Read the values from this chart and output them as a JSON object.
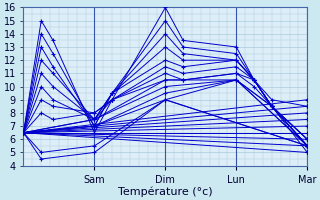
{
  "xlabel": "Température (°c)",
  "background_color": "#cce8f0",
  "plot_bg_color": "#ddeef8",
  "grid_color": "#aaccdd",
  "line_color": "#0000cc",
  "ylim": [
    4,
    16
  ],
  "xlim": [
    0,
    96
  ],
  "yticks": [
    4,
    5,
    6,
    7,
    8,
    9,
    10,
    11,
    12,
    13,
    14,
    15,
    16
  ],
  "xtick_positions": [
    24,
    48,
    72,
    96
  ],
  "xtick_labels": [
    "Sam",
    "Dim",
    "Lun",
    "Mar"
  ],
  "series": [
    {
      "x": [
        0,
        6,
        10,
        24,
        30,
        48,
        54,
        72,
        78,
        84,
        96
      ],
      "y": [
        6.5,
        15.0,
        13.5,
        6.5,
        9.0,
        16.0,
        13.5,
        13.0,
        10.5,
        8.5,
        5.0
      ]
    },
    {
      "x": [
        0,
        6,
        10,
        24,
        30,
        48,
        54,
        72,
        78,
        84,
        96
      ],
      "y": [
        6.5,
        14.0,
        12.5,
        7.0,
        9.5,
        15.0,
        13.0,
        12.5,
        10.5,
        8.5,
        5.5
      ]
    },
    {
      "x": [
        0,
        6,
        10,
        24,
        30,
        48,
        54,
        72,
        78,
        84,
        96
      ],
      "y": [
        6.5,
        13.0,
        11.5,
        7.0,
        9.5,
        14.0,
        12.5,
        12.0,
        10.5,
        8.5,
        6.0
      ]
    },
    {
      "x": [
        0,
        6,
        10,
        24,
        30,
        48,
        54,
        72,
        78,
        84,
        96
      ],
      "y": [
        6.5,
        12.0,
        11.0,
        7.5,
        9.5,
        13.0,
        12.0,
        12.0,
        10.5,
        8.5,
        6.0
      ]
    },
    {
      "x": [
        0,
        6,
        10,
        24,
        30,
        48,
        54,
        72,
        78,
        84,
        96
      ],
      "y": [
        6.5,
        11.0,
        10.0,
        7.5,
        9.5,
        12.0,
        11.5,
        12.0,
        10.5,
        8.5,
        6.0
      ]
    },
    {
      "x": [
        0,
        6,
        10,
        24,
        30,
        48,
        54,
        72,
        78,
        84,
        96
      ],
      "y": [
        6.5,
        10.0,
        9.0,
        7.5,
        9.0,
        11.5,
        11.0,
        11.5,
        10.5,
        8.5,
        5.5
      ]
    },
    {
      "x": [
        0,
        6,
        10,
        24,
        30,
        48,
        54,
        72,
        78,
        84,
        96
      ],
      "y": [
        6.5,
        9.0,
        8.5,
        8.0,
        9.0,
        11.0,
        10.5,
        11.0,
        10.5,
        9.0,
        8.5
      ]
    },
    {
      "x": [
        0,
        6,
        10,
        24,
        30,
        48,
        54,
        72,
        78,
        84,
        96
      ],
      "y": [
        6.5,
        8.0,
        7.5,
        8.0,
        9.0,
        10.5,
        10.5,
        11.0,
        10.0,
        8.5,
        5.5
      ]
    },
    {
      "x": [
        0,
        24,
        48,
        72,
        84,
        96
      ],
      "y": [
        6.5,
        7.5,
        10.5,
        10.5,
        8.5,
        5.5
      ]
    },
    {
      "x": [
        0,
        24,
        48,
        72,
        84,
        96
      ],
      "y": [
        6.5,
        7.5,
        10.0,
        10.5,
        8.5,
        5.5
      ]
    },
    {
      "x": [
        0,
        24,
        48,
        72,
        96
      ],
      "y": [
        6.5,
        7.0,
        9.5,
        10.5,
        5.5
      ]
    },
    {
      "x": [
        0,
        24,
        48,
        72,
        96
      ],
      "y": [
        6.5,
        7.0,
        9.0,
        10.5,
        5.5
      ]
    },
    {
      "x": [
        0,
        6,
        24,
        48,
        96
      ],
      "y": [
        6.5,
        5.0,
        5.5,
        9.0,
        5.5
      ]
    },
    {
      "x": [
        0,
        6,
        24,
        48,
        96
      ],
      "y": [
        6.5,
        4.5,
        5.0,
        9.0,
        5.5
      ]
    },
    {
      "x": [
        0,
        96
      ],
      "y": [
        6.5,
        9.0
      ]
    },
    {
      "x": [
        0,
        96
      ],
      "y": [
        6.5,
        8.5
      ]
    },
    {
      "x": [
        0,
        96
      ],
      "y": [
        6.5,
        8.0
      ]
    },
    {
      "x": [
        0,
        96
      ],
      "y": [
        6.5,
        7.5
      ]
    },
    {
      "x": [
        0,
        96
      ],
      "y": [
        6.5,
        7.0
      ]
    },
    {
      "x": [
        0,
        96
      ],
      "y": [
        6.5,
        6.5
      ]
    },
    {
      "x": [
        0,
        96
      ],
      "y": [
        6.5,
        6.0
      ]
    },
    {
      "x": [
        0,
        96
      ],
      "y": [
        6.5,
        5.5
      ]
    },
    {
      "x": [
        0,
        96
      ],
      "y": [
        6.5,
        5.0
      ]
    }
  ]
}
